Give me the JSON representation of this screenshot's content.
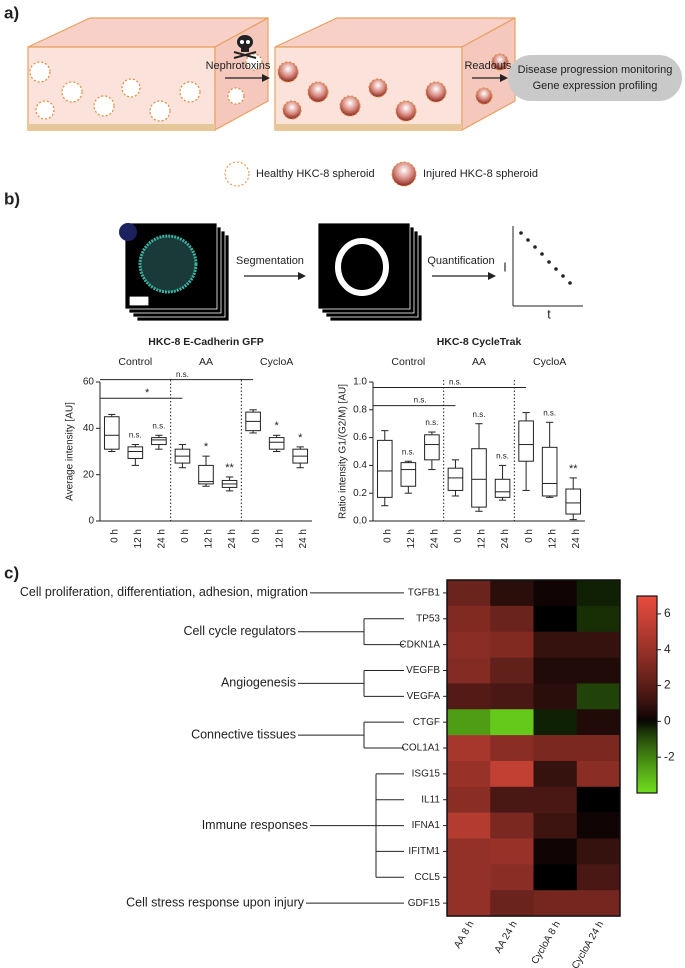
{
  "figure": {
    "panel_labels": [
      "a)",
      "b)",
      "c)"
    ],
    "a": {
      "step1": "Nephrotoxins",
      "step2": "Readouts",
      "readouts": [
        "Disease progression monitoring",
        "Gene expression profiling"
      ],
      "legend": [
        "Healthy HKC-8 spheroid",
        "Injured HKC-8 spheroid"
      ]
    },
    "b": {
      "steps": [
        "Segmentation",
        "Quantification"
      ],
      "axis": [
        "I",
        "t"
      ]
    }
  },
  "chart_data": [
    {
      "type": "box",
      "title": "HKC-8 E-Cadherin GFP",
      "ylabel": "Average intensity [AU]",
      "groups": [
        "Control",
        "AA",
        "CycloA"
      ],
      "categories": [
        "0 h",
        "12 h",
        "24 h",
        "0 h",
        "12 h",
        "24 h",
        "0 h",
        "12 h",
        "24 h"
      ],
      "boxes": [
        {
          "min": 30,
          "q1": 31,
          "median": 37,
          "q3": 45,
          "max": 46
        },
        {
          "min": 24,
          "q1": 27,
          "median": 30,
          "q3": 32,
          "max": 33
        },
        {
          "min": 31,
          "q1": 33,
          "median": 35,
          "q3": 36,
          "max": 37
        },
        {
          "min": 23,
          "q1": 25,
          "median": 28,
          "q3": 31,
          "max": 33
        },
        {
          "min": 15,
          "q1": 16,
          "median": 17,
          "q3": 24,
          "max": 28
        },
        {
          "min": 13,
          "q1": 14.5,
          "median": 16,
          "q3": 17.5,
          "max": 19
        },
        {
          "min": 38,
          "q1": 39,
          "median": 43,
          "q3": 47,
          "max": 48
        },
        {
          "min": 30,
          "q1": 31,
          "median": 34,
          "q3": 36,
          "max": 37
        },
        {
          "min": 23,
          "q1": 25,
          "median": 28,
          "q3": 31,
          "max": 32
        }
      ],
      "annotations": [
        null,
        "n.s.",
        "n.s.",
        null,
        "*",
        "**",
        null,
        "*",
        "*"
      ],
      "comparisons": [
        {
          "label": "*",
          "y": 53
        },
        {
          "label": "n.s.",
          "y": 61
        }
      ],
      "ylim": [
        0,
        60
      ],
      "yticks": [
        0,
        20,
        40,
        60
      ]
    },
    {
      "type": "box",
      "title": "HKC-8 CycleTrak",
      "ylabel": "Ratio intensity G1/(G2/M) [AU]",
      "groups": [
        "Control",
        "AA",
        "CycloA"
      ],
      "categories": [
        "0 h",
        "12 h",
        "24 h",
        "0 h",
        "12 h",
        "24 h",
        "0 h",
        "12 h",
        "24 h"
      ],
      "boxes": [
        {
          "min": 0.11,
          "q1": 0.17,
          "median": 0.36,
          "q3": 0.58,
          "max": 0.65
        },
        {
          "min": 0.2,
          "q1": 0.25,
          "median": 0.37,
          "q3": 0.42,
          "max": 0.43
        },
        {
          "min": 0.37,
          "q1": 0.44,
          "median": 0.55,
          "q3": 0.62,
          "max": 0.64
        },
        {
          "min": 0.18,
          "q1": 0.22,
          "median": 0.31,
          "q3": 0.38,
          "max": 0.44
        },
        {
          "min": 0.07,
          "q1": 0.1,
          "median": 0.3,
          "q3": 0.52,
          "max": 0.7
        },
        {
          "min": 0.15,
          "q1": 0.17,
          "median": 0.21,
          "q3": 0.3,
          "max": 0.4
        },
        {
          "min": 0.22,
          "q1": 0.43,
          "median": 0.55,
          "q3": 0.72,
          "max": 0.78
        },
        {
          "min": 0.17,
          "q1": 0.18,
          "median": 0.27,
          "q3": 0.53,
          "max": 0.71
        },
        {
          "min": 0.01,
          "q1": 0.05,
          "median": 0.13,
          "q3": 0.23,
          "max": 0.31
        }
      ],
      "annotations": [
        null,
        "n.s.",
        "n.s.",
        null,
        "n.s.",
        "n.s.",
        null,
        "n.s.",
        "**"
      ],
      "comparisons": [
        {
          "label": "n.s.",
          "y": 0.83
        },
        {
          "label": "n.s.",
          "y": 0.96
        }
      ],
      "ylim": [
        0,
        1
      ],
      "yticks": [
        {
          "value": 0,
          "label": "0.0"
        },
        {
          "value": 0.2,
          "label": "0.2"
        },
        {
          "value": 0.4,
          "label": "0.4"
        },
        {
          "value": 0.6,
          "label": "0.6"
        },
        {
          "value": 0.8,
          "label": "0.8"
        },
        {
          "value": 1,
          "label": "1.0"
        }
      ]
    },
    {
      "type": "heatmap",
      "rows": [
        "TGFB1",
        "TP53",
        "CDKN1A",
        "VEGFB",
        "VEGFA",
        "CTGF",
        "COL1A1",
        "ISG15",
        "IL11",
        "IFNA1",
        "IFITM1",
        "CCL5",
        "GDF15"
      ],
      "columns": [
        "AA 8 h",
        "AA 24 h",
        "CycloA 8 h",
        "CycloA 24 h"
      ],
      "groups": [
        "Cell proliferation, differentiation, adhesion, migration",
        "Cell cycle regulators",
        "Angiogenesis",
        "Connective tissues",
        "Immune responses",
        "Cell stress response upon injury"
      ],
      "values": [
        [
          2.5,
          0.7,
          0.2,
          -0.3
        ],
        [
          3.2,
          2.5,
          0,
          -0.5
        ],
        [
          3.5,
          3.2,
          1,
          1
        ],
        [
          3.3,
          2.2,
          0.5,
          0.5
        ],
        [
          1.8,
          1.5,
          0.7,
          -0.8
        ],
        [
          -2.5,
          -3.5,
          -0.3,
          0.5
        ],
        [
          4.5,
          3.5,
          3,
          3
        ],
        [
          4,
          5.5,
          1,
          3.5
        ],
        [
          3.5,
          1.5,
          1.5,
          0
        ],
        [
          5,
          3,
          1.2,
          0.2
        ],
        [
          3.8,
          4,
          0.2,
          1
        ],
        [
          3.8,
          3.5,
          0,
          1.5
        ],
        [
          3.8,
          2.5,
          2.8,
          2.8
        ]
      ],
      "clim": [
        -4,
        7
      ],
      "cticks": [
        6,
        4,
        2,
        0,
        -2
      ]
    }
  ]
}
